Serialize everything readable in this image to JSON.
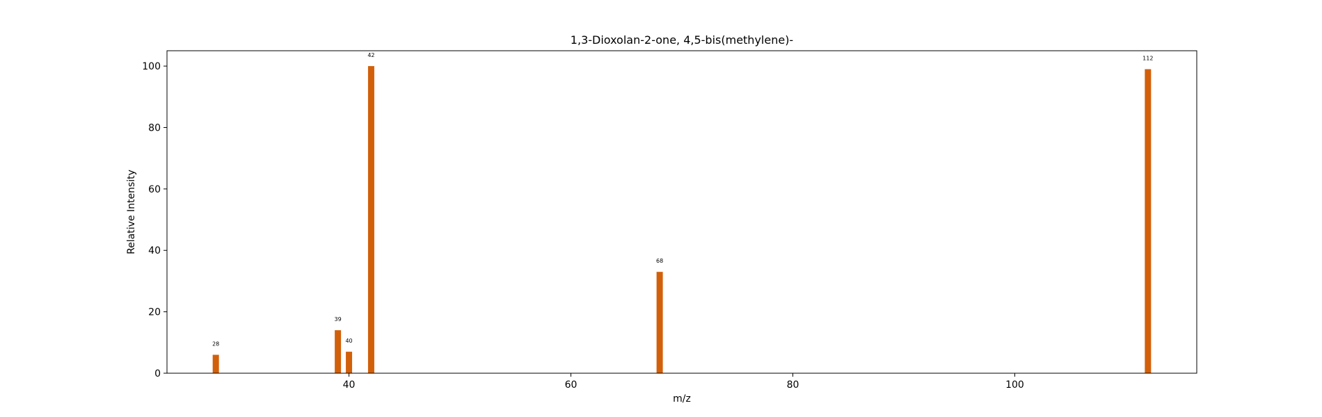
{
  "chart_data": {
    "type": "bar",
    "title": "1,3-Dioxolan-2-one, 4,5-bis(methylene)-",
    "xlabel": "m/z",
    "ylabel": "Relative Intensity",
    "xlim": [
      23.6,
      116.4
    ],
    "ylim": [
      0,
      105
    ],
    "xticks": [
      40,
      60,
      80,
      100
    ],
    "yticks": [
      0,
      20,
      40,
      60,
      80,
      100
    ],
    "grid": false,
    "bar_color": "#d2600a",
    "x": [
      28,
      39,
      40,
      42,
      68,
      112
    ],
    "values": [
      6,
      14,
      7,
      100,
      33,
      99
    ],
    "labels": [
      "28",
      "39",
      "40",
      "42",
      "68",
      "112"
    ]
  }
}
